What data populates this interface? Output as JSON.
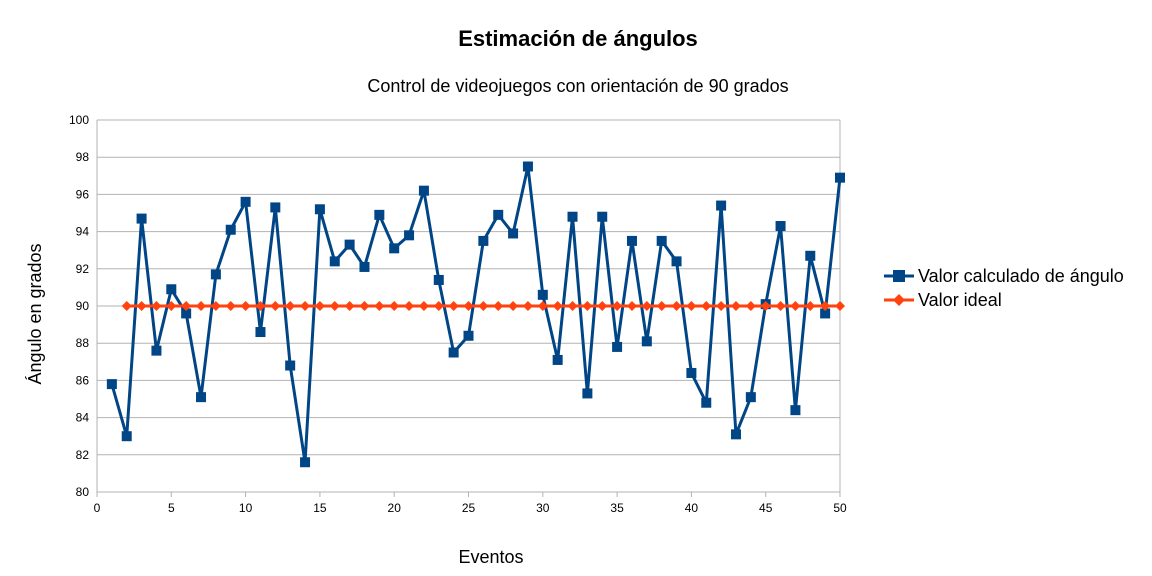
{
  "chart_data": {
    "type": "line",
    "title": "Estimación de ángulos",
    "subtitle": "Control de videojuegos con orientación de 90 grados",
    "xlabel": "Eventos",
    "ylabel": "Ángulo en grados",
    "xlim": [
      0,
      50
    ],
    "ylim": [
      80,
      100
    ],
    "xticks": [
      0,
      5,
      10,
      15,
      20,
      25,
      30,
      35,
      40,
      45,
      50
    ],
    "yticks": [
      80,
      82,
      84,
      86,
      88,
      90,
      92,
      94,
      96,
      98,
      100
    ],
    "grid": "horizontal",
    "legend_position": "right",
    "series": [
      {
        "name": "Valor calculado de ángulo",
        "color": "#004586",
        "marker": "square",
        "x": [
          1,
          2,
          3,
          4,
          5,
          6,
          7,
          8,
          9,
          10,
          11,
          12,
          13,
          14,
          15,
          16,
          17,
          18,
          19,
          20,
          21,
          22,
          23,
          24,
          25,
          26,
          27,
          28,
          29,
          30,
          31,
          32,
          33,
          34,
          35,
          36,
          37,
          38,
          39,
          40,
          41,
          42,
          43,
          44,
          45,
          46,
          47,
          48,
          49,
          50
        ],
        "values": [
          85.8,
          83.0,
          94.7,
          87.6,
          90.9,
          89.6,
          85.1,
          91.7,
          94.1,
          95.6,
          88.6,
          95.3,
          86.8,
          81.6,
          95.2,
          92.4,
          93.3,
          92.1,
          94.9,
          93.1,
          93.8,
          96.2,
          91.4,
          87.5,
          88.4,
          93.5,
          94.9,
          93.9,
          97.5,
          90.6,
          87.1,
          94.8,
          85.3,
          94.8,
          87.8,
          93.5,
          88.1,
          93.5,
          92.4,
          86.4,
          84.8,
          95.4,
          83.1,
          85.1,
          90.1,
          94.3,
          84.4,
          92.7,
          89.6,
          96.9
        ]
      },
      {
        "name": "Valor ideal",
        "color": "#ff420e",
        "marker": "diamond",
        "x": [
          2,
          3,
          4,
          5,
          6,
          7,
          8,
          9,
          10,
          11,
          12,
          13,
          14,
          15,
          16,
          17,
          18,
          19,
          20,
          21,
          22,
          23,
          24,
          25,
          26,
          27,
          28,
          29,
          30,
          31,
          32,
          33,
          34,
          35,
          36,
          37,
          38,
          39,
          40,
          41,
          42,
          43,
          44,
          45,
          46,
          47,
          48,
          49,
          50
        ],
        "values": [
          90,
          90,
          90,
          90,
          90,
          90,
          90,
          90,
          90,
          90,
          90,
          90,
          90,
          90,
          90,
          90,
          90,
          90,
          90,
          90,
          90,
          90,
          90,
          90,
          90,
          90,
          90,
          90,
          90,
          90,
          90,
          90,
          90,
          90,
          90,
          90,
          90,
          90,
          90,
          90,
          90,
          90,
          90,
          90,
          90,
          90,
          90,
          90,
          90
        ]
      }
    ]
  }
}
